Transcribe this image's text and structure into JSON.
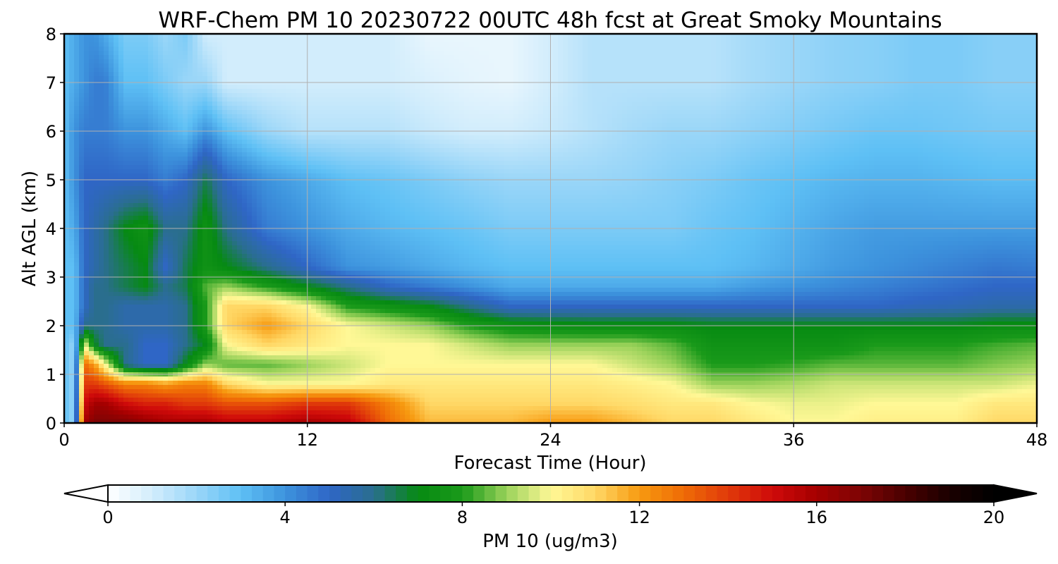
{
  "chart_data": {
    "type": "heatmap",
    "title": "WRF-Chem PM 10  20230722 00UTC 48h fcst at Great Smoky Mountains",
    "xlabel": "Forecast Time (Hour)",
    "ylabel": "Alt AGL (km)",
    "xlim": [
      0,
      48
    ],
    "ylim": [
      0,
      8
    ],
    "x_ticks": [
      "0",
      "12",
      "24",
      "36",
      "48"
    ],
    "y_ticks": [
      "0",
      "1",
      "2",
      "3",
      "4",
      "5",
      "6",
      "7",
      "8"
    ],
    "grid": true,
    "colorbar": {
      "label": "PM 10  (ug/m3)",
      "range": [
        0,
        20
      ],
      "ticks": [
        "0",
        "4",
        "8",
        "12",
        "16",
        "20"
      ],
      "extend": "both",
      "colors": {
        "0": "#ffffff",
        "1": "#d2edfc",
        "2": "#9ad6f8",
        "3": "#5ec0f5",
        "4": "#3d93dd",
        "5": "#2f66c6",
        "6": "#2a6e8e",
        "7": "#068a12",
        "8": "#1a9a1a",
        "9": "#9ad25a",
        "10": "#fff896",
        "11": "#ffd866",
        "12": "#f79a10",
        "13": "#ef6b06",
        "14": "#e03a0a",
        "15": "#cf0a0a",
        "16": "#a50000",
        "17": "#7d0404",
        "18": "#4a0000",
        "19": "#1a0000",
        "20": "#000000"
      }
    },
    "x_hours": [
      0,
      0.5,
      1,
      1.5,
      2,
      3,
      4,
      5,
      6,
      7,
      8,
      10,
      12,
      14,
      16,
      18,
      20,
      22,
      24,
      26,
      28,
      30,
      32,
      34,
      36,
      38,
      40,
      42,
      44,
      46,
      48
    ],
    "z_altitudes_km": [
      0,
      0.4,
      0.8,
      1.2,
      1.6,
      2.0,
      2.4,
      2.8,
      3.2,
      4.0,
      5.0,
      6.0,
      7.0,
      8.0
    ],
    "values_ug_m3": [
      [
        3,
        2,
        16,
        17,
        17,
        17,
        16.5,
        16,
        16,
        16,
        15.5,
        15.5,
        16,
        15.5,
        13,
        11.5,
        11.5,
        11.5,
        12,
        12,
        11.5,
        11,
        11,
        10.5,
        10,
        10,
        10.3,
        10.3,
        10.3,
        11,
        11
      ],
      [
        3,
        2,
        15,
        16,
        16,
        15,
        14.5,
        14.5,
        14,
        14,
        13.5,
        13.5,
        14,
        14,
        12.5,
        11,
        11,
        11,
        11,
        11,
        10.8,
        10.5,
        10.5,
        10,
        9.8,
        9.8,
        10,
        10,
        10,
        10.5,
        10.5
      ],
      [
        3,
        2,
        14,
        14,
        13.5,
        12.5,
        12.5,
        12,
        12.5,
        12.5,
        11,
        10,
        10,
        10,
        10.5,
        10.5,
        10.5,
        10.5,
        10.5,
        10.5,
        10.3,
        10,
        9,
        9,
        9.2,
        9.5,
        9.5,
        9.5,
        9.5,
        9.5,
        9.8
      ],
      [
        3,
        2,
        13,
        12,
        10,
        6,
        5,
        5,
        7,
        9,
        8.5,
        8.5,
        9,
        9.5,
        10,
        10,
        10,
        10,
        10,
        10,
        9.5,
        9,
        8,
        8,
        8.2,
        8.5,
        8.5,
        8.5,
        8.5,
        8.8,
        9
      ],
      [
        3,
        2,
        10,
        7,
        6,
        6,
        5,
        5,
        6,
        7,
        10,
        11,
        10.5,
        10,
        10,
        10,
        9.5,
        9,
        9,
        9,
        9,
        8.5,
        7.5,
        7.5,
        7.5,
        7.5,
        8,
        8,
        8,
        8.3,
        8.5
      ],
      [
        3,
        3,
        6,
        6,
        6,
        5.5,
        5.5,
        5.5,
        6,
        8,
        11,
        12,
        11,
        10,
        9.5,
        9,
        8,
        7.5,
        7.3,
        7.2,
        7.2,
        7.2,
        7,
        7,
        7,
        7,
        7,
        7,
        7,
        7.2,
        7.2
      ],
      [
        3,
        3,
        5,
        6,
        6,
        5.5,
        5.5,
        5.5,
        6,
        8,
        11,
        11,
        10,
        8,
        7.5,
        7,
        6,
        5,
        5,
        5,
        5,
        5,
        5,
        5,
        5,
        5,
        5,
        5.2,
        5.3,
        5.5,
        5.5
      ],
      [
        3,
        3,
        5,
        6,
        6,
        6.5,
        7,
        6,
        6.5,
        8.5,
        9,
        8,
        7,
        6,
        5,
        4.5,
        4,
        3.5,
        3.5,
        3.5,
        3.5,
        3.5,
        3.5,
        3.8,
        4,
        4.2,
        4.4,
        4.6,
        4.8,
        5,
        5
      ],
      [
        3,
        3,
        5,
        5.5,
        6,
        6.5,
        7,
        5,
        6.5,
        7.5,
        7,
        6,
        5,
        4,
        3.8,
        3.5,
        3.2,
        3,
        3,
        3,
        3,
        3,
        3,
        3.2,
        3.5,
        3.8,
        4,
        4.2,
        4.4,
        4.6,
        4.5
      ],
      [
        3,
        3.5,
        5,
        5.5,
        6,
        7,
        7.5,
        6,
        6,
        7.5,
        6,
        4.5,
        4,
        3.5,
        3.2,
        3,
        2.8,
        2.5,
        2.5,
        2.5,
        2.5,
        2.5,
        2.8,
        3,
        3.3,
        3.6,
        3.8,
        3.8,
        3.8,
        3.8,
        3.8
      ],
      [
        3,
        4,
        5,
        5,
        5,
        5,
        5,
        4.5,
        5,
        6.5,
        5,
        4,
        3.5,
        3,
        2.8,
        2.5,
        2.2,
        2,
        2,
        2,
        2.1,
        2.3,
        2.5,
        2.8,
        3,
        3.2,
        3.3,
        3.3,
        3.2,
        3.1,
        3.1
      ],
      [
        3,
        4,
        4.5,
        4.5,
        4.5,
        4,
        4,
        3.5,
        3,
        4,
        3,
        2,
        1.5,
        1.5,
        1.5,
        1.2,
        1,
        1,
        1.2,
        1.5,
        1.8,
        2,
        2,
        2.2,
        2.4,
        2.6,
        2.8,
        2.8,
        2.7,
        2.6,
        2.6
      ],
      [
        3,
        3.5,
        4,
        4.5,
        4.5,
        3,
        3,
        2.5,
        2,
        2,
        1,
        1,
        1,
        1,
        1,
        0.8,
        0.6,
        0.5,
        1,
        1.5,
        1.5,
        1.5,
        1.5,
        1.8,
        2,
        2.2,
        2.3,
        2.5,
        2.5,
        2.3,
        2.3
      ],
      [
        3,
        3.5,
        4,
        4,
        3.5,
        2.5,
        2.5,
        2,
        2.5,
        1,
        1,
        1,
        1,
        1,
        1,
        0.5,
        0.5,
        0.5,
        1,
        1.5,
        1.5,
        1.5,
        1.5,
        1.8,
        2,
        2.2,
        2.3,
        2.5,
        2.5,
        2.3,
        2.3
      ]
    ]
  }
}
